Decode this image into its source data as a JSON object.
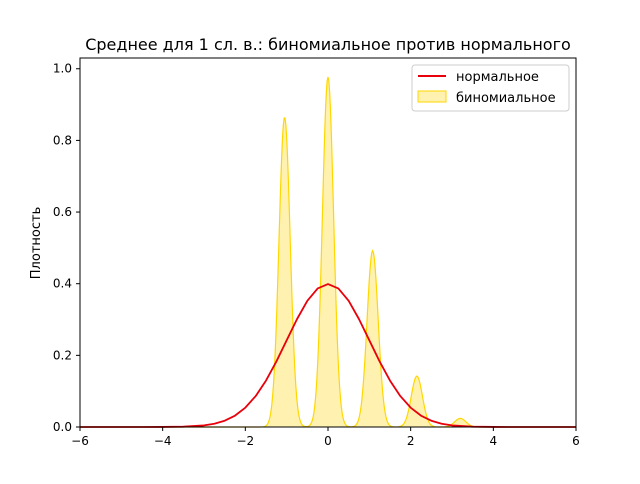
{
  "chart_data": {
    "type": "area",
    "title": "Среднее для 1 сл. в.: биномиальное против нормального",
    "xlabel": "",
    "ylabel": "Плотность",
    "xlim": [
      -6,
      6
    ],
    "ylim": [
      0,
      1.03
    ],
    "grid": false,
    "legend_position": "top-right",
    "x_ticks": [
      {
        "value": -6,
        "label": "−6"
      },
      {
        "value": -4,
        "label": "−4"
      },
      {
        "value": -2,
        "label": "−2"
      },
      {
        "value": 0,
        "label": "0"
      },
      {
        "value": 2,
        "label": "2"
      },
      {
        "value": 4,
        "label": "4"
      },
      {
        "value": 6,
        "label": "6"
      }
    ],
    "y_ticks": [
      {
        "value": 0.0,
        "label": "0.0"
      },
      {
        "value": 0.2,
        "label": "0.2"
      },
      {
        "value": 0.4,
        "label": "0.4"
      },
      {
        "value": 0.6,
        "label": "0.6"
      },
      {
        "value": 0.8,
        "label": "0.8"
      },
      {
        "value": 1.0,
        "label": "1.0"
      }
    ],
    "series": [
      {
        "name": "нормальное",
        "kind": "line",
        "color": "#e8000b",
        "x": [
          -6,
          -5.5,
          -5,
          -4.5,
          -4,
          -3.5,
          -3,
          -2.75,
          -2.5,
          -2.25,
          -2,
          -1.75,
          -1.5,
          -1.25,
          -1,
          -0.75,
          -0.5,
          -0.25,
          0,
          0.25,
          0.5,
          0.75,
          1,
          1.25,
          1.5,
          1.75,
          2,
          2.25,
          2.5,
          2.75,
          3,
          3.5,
          4,
          4.5,
          5,
          5.5,
          6
        ],
        "y": [
          0.0,
          0.0,
          0.0,
          0.0,
          0.0001,
          0.0009,
          0.0044,
          0.0091,
          0.0175,
          0.0317,
          0.054,
          0.0863,
          0.1295,
          0.1826,
          0.242,
          0.3011,
          0.3521,
          0.3867,
          0.3989,
          0.3867,
          0.3521,
          0.3011,
          0.242,
          0.1826,
          0.1295,
          0.0863,
          0.054,
          0.0317,
          0.0175,
          0.0091,
          0.0044,
          0.0009,
          0.0001,
          0.0,
          0.0,
          0.0,
          0.0
        ]
      },
      {
        "name": "биномиальное",
        "kind": "area",
        "color": "#ffd700",
        "fill": "#fff2b0",
        "peaks": [
          {
            "center": -1.05,
            "height": 0.865
          },
          {
            "center": 0.0,
            "height": 0.977
          },
          {
            "center": 1.08,
            "height": 0.492
          },
          {
            "center": 2.15,
            "height": 0.142
          },
          {
            "center": 3.2,
            "height": 0.024
          }
        ],
        "peak_sigma": 0.135,
        "x_range": [
          -6,
          6
        ]
      }
    ]
  }
}
